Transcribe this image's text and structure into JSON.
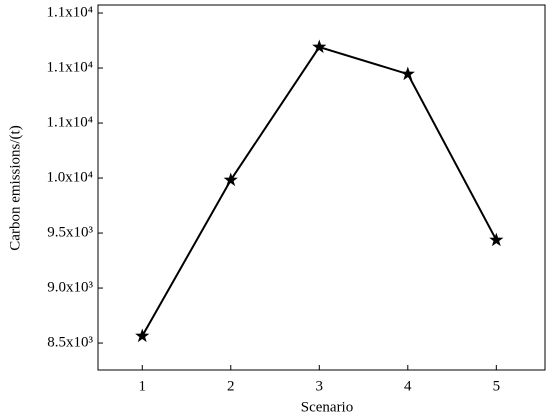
{
  "chart_data": {
    "type": "line",
    "xlabel": "Scenario",
    "ylabel": "Carbon emissions/(t)",
    "x": [
      1,
      2,
      3,
      4,
      5
    ],
    "values": [
      8564,
      9982,
      11191,
      10945,
      9436
    ],
    "color": "#000000",
    "marker": "star",
    "xlim": [
      0.5,
      5.55
    ],
    "xticks": [
      1,
      2,
      3,
      4,
      5
    ],
    "ylim": [
      8255,
      11573
    ],
    "yticks": [
      {
        "value": 8500,
        "label": "8.5x10³"
      },
      {
        "value": 9000,
        "label": "9.0x10³"
      },
      {
        "value": 9500,
        "label": "9.5x10³"
      },
      {
        "value": 10000,
        "label": "1.0x10⁴"
      },
      {
        "value": 10500,
        "label": "1.1x10⁴"
      },
      {
        "value": 11000,
        "label": "1.1x10⁴"
      },
      {
        "value": 11500,
        "label": "1.1x10⁴"
      }
    ],
    "grid": false
  }
}
